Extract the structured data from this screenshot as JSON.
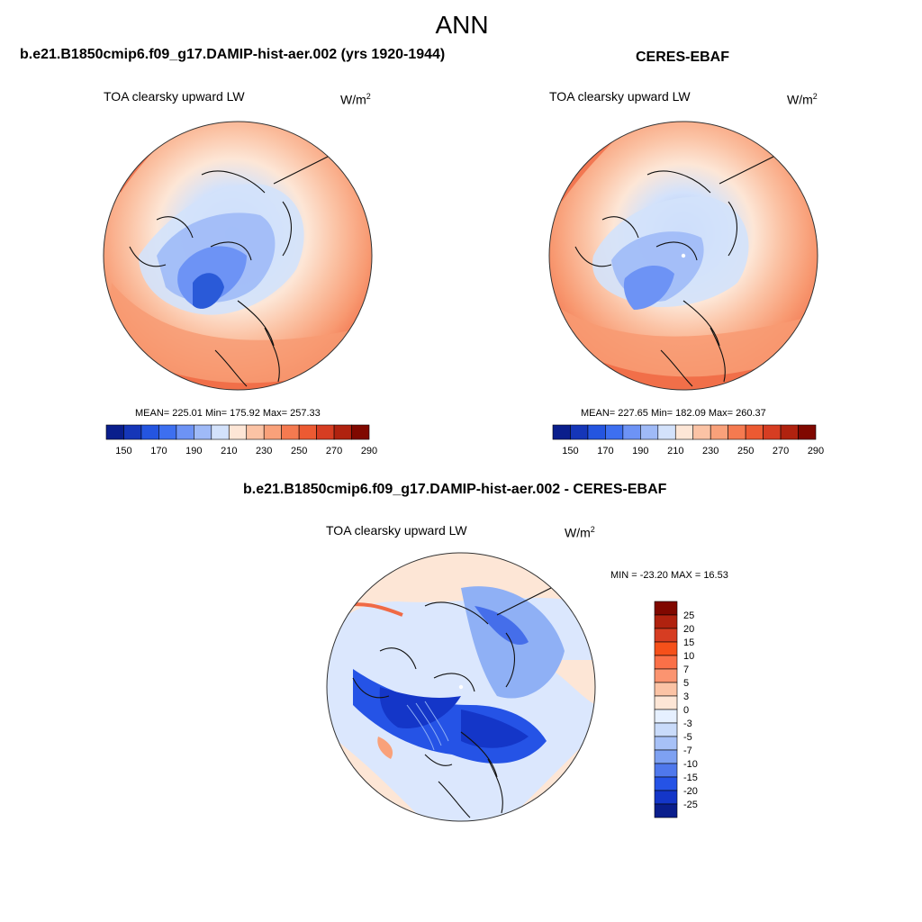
{
  "figure": {
    "title": "ANN"
  },
  "panels": [
    {
      "header": "b.e21.B1850cmip6.f09_g17.DAMIP-hist-aer.002 (yrs 1920-1944)",
      "variable": "TOA clearsky upward LW",
      "unit_base": "W/m",
      "unit_exp": "2",
      "stats": "MEAN= 225.01  Min= 175.92  Max= 257.33"
    },
    {
      "header": "CERES-EBAF",
      "variable": "TOA clearsky upward LW",
      "unit_base": "W/m",
      "unit_exp": "2",
      "stats": "MEAN= 227.65  Min= 182.09  Max= 260.37"
    },
    {
      "header": "b.e21.B1850cmip6.f09_g17.DAMIP-hist-aer.002 - CERES-EBAF",
      "variable": "TOA clearsky upward LW",
      "unit_base": "W/m",
      "unit_exp": "2",
      "stats": "MIN = -23.20 MAX =  16.53"
    }
  ],
  "colorbars": {
    "abs": {
      "orientation": "horizontal",
      "colors": [
        "#0a1e8c",
        "#1536b8",
        "#2455e0",
        "#3d6ff0",
        "#6d93f5",
        "#9fbaf7",
        "#d3e2fb",
        "#fde6d6",
        "#fbc3a5",
        "#f9a17a",
        "#f57a50",
        "#ec5a32",
        "#d63d22",
        "#b0220f",
        "#800800"
      ],
      "labels": [
        "150",
        "170",
        "190",
        "210",
        "230",
        "250",
        "270",
        "290"
      ]
    },
    "diff": {
      "orientation": "vertical",
      "colors": [
        "#800800",
        "#b0220f",
        "#d63d22",
        "#f5501a",
        "#fa7048",
        "#fb9470",
        "#fbc3a5",
        "#fde6d6",
        "#e6f0ff",
        "#c9dbfa",
        "#a7c1f7",
        "#7ea1f2",
        "#4f78ec",
        "#2553e6",
        "#1436c8",
        "#0a1e8c"
      ],
      "labels": [
        "25",
        "20",
        "15",
        "10",
        "7",
        "5",
        "3",
        "0",
        "-3",
        "-5",
        "-7",
        "-10",
        "-15",
        "-20",
        "-25"
      ]
    }
  },
  "maps": {
    "abs_colors": {
      "warm_edge": "#f06a45",
      "warm": "#f89a72",
      "light_warm": "#fcd1b6",
      "pale": "#fde6d6",
      "light_blue": "#d3e2fb",
      "blue": "#9fbaf7",
      "mid_blue": "#6d93f5",
      "deep_blue": "#2a5ad8"
    },
    "diff_colors": {
      "pale": "#fde6d6",
      "light_blue": "#dbe7fd",
      "blue": "#8fb0f5",
      "deep_blue": "#2553e6",
      "dark_blue": "#1436c8",
      "warm": "#f9a17a"
    }
  }
}
